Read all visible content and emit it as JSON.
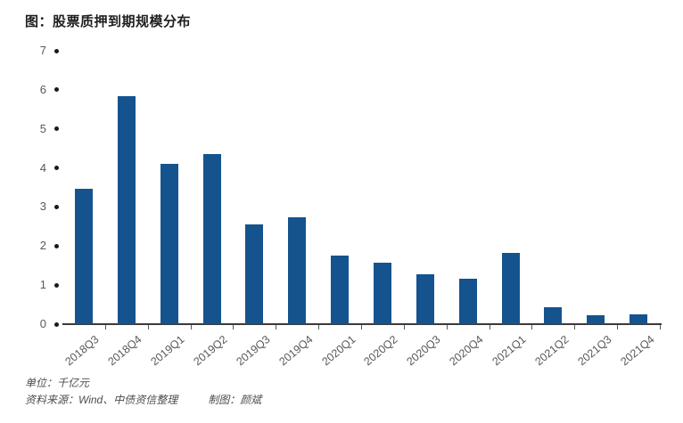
{
  "title": "图：股票质押到期规模分布",
  "footer": {
    "unit_label": "单位：千亿元",
    "source_label": "资料来源：Wind、中债资信整理",
    "credit_label": "制图：颜斌"
  },
  "colors": {
    "bar": "#15538E",
    "axis": "#3a3a3a",
    "tick_dot": "#1a1a1a",
    "tick_label": "#595959",
    "title_text": "#1f1f1f"
  },
  "chart_data": {
    "type": "bar",
    "title": "图：股票质押到期规模分布",
    "categories": [
      "2018Q3",
      "2018Q4",
      "2019Q1",
      "2019Q2",
      "2019Q3",
      "2019Q4",
      "2020Q1",
      "2020Q2",
      "2020Q3",
      "2020Q4",
      "2021Q1",
      "2021Q2",
      "2021Q3",
      "2021Q4"
    ],
    "values": [
      3.47,
      5.84,
      4.1,
      4.36,
      2.56,
      2.74,
      1.75,
      1.58,
      1.28,
      1.16,
      1.83,
      0.43,
      0.22,
      0.26
    ],
    "xlabel": "",
    "ylabel": "",
    "unit": "千亿元",
    "ylim": [
      0,
      7
    ],
    "yticks": [
      0,
      1,
      2,
      3,
      4,
      5,
      6,
      7
    ],
    "grid": false,
    "legend": "none",
    "bar_color": "#15538E",
    "x_tick_rotation_deg": 40
  }
}
